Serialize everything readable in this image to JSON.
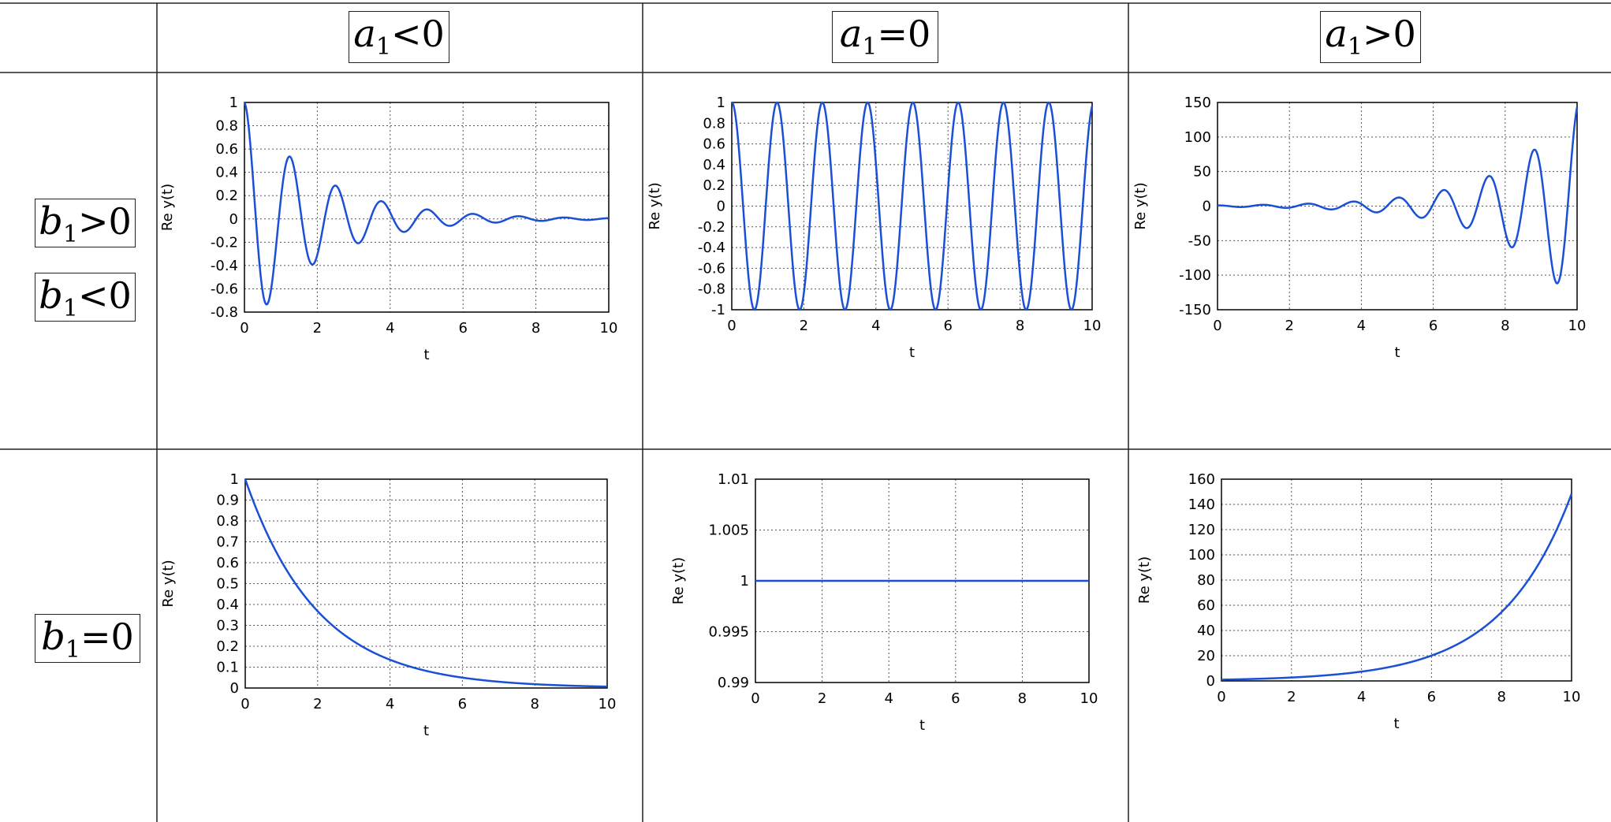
{
  "headers": {
    "col_a_neg": {
      "var": "a",
      "sub": "1",
      "op": "<0"
    },
    "col_a_zero": {
      "var": "a",
      "sub": "1",
      "op": "=0"
    },
    "col_a_pos": {
      "var": "a",
      "sub": "1",
      "op": ">0"
    },
    "row_b_pos": {
      "var": "b",
      "sub": "1",
      "op": ">0"
    },
    "row_b_neg": {
      "var": "b",
      "sub": "1",
      "op": "<0"
    },
    "row_b_zero": {
      "var": "b",
      "sub": "1",
      "op": "=0"
    }
  },
  "colors": {
    "line": "#1a4fd6",
    "grid": "#555555",
    "border": "#222222"
  },
  "chart_data": [
    {
      "type": "line",
      "function": "exp(-0.5 t) cos(5 t)",
      "x_range": [
        0,
        10
      ],
      "ylim": [
        -0.8,
        1
      ],
      "xticks": [
        "0",
        "2",
        "4",
        "6",
        "8",
        "10"
      ],
      "yticks": [
        "-0.8",
        "-0.6",
        "-0.4",
        "-0.2",
        "0",
        "0.2",
        "0.4",
        "0.6",
        "0.8",
        "1"
      ],
      "xlabel": "t",
      "ylabel": "Re y(t)",
      "grid": true
    },
    {
      "type": "line",
      "function": "cos(5 t)",
      "x_range": [
        0,
        10
      ],
      "ylim": [
        -1,
        1
      ],
      "xticks": [
        "0",
        "2",
        "4",
        "6",
        "8",
        "10"
      ],
      "yticks": [
        "-1",
        "-0.8",
        "-0.6",
        "-0.4",
        "-0.2",
        "0",
        "0.2",
        "0.4",
        "0.6",
        "0.8",
        "1"
      ],
      "xlabel": "t",
      "ylabel": "Re y(t)",
      "grid": true
    },
    {
      "type": "line",
      "function": "exp(0.5 t) cos(5 t)",
      "x_range": [
        0,
        10
      ],
      "ylim": [
        -150,
        150
      ],
      "xticks": [
        "0",
        "2",
        "4",
        "6",
        "8",
        "10"
      ],
      "yticks": [
        "-150",
        "-100",
        "-50",
        "0",
        "50",
        "100",
        "150"
      ],
      "xlabel": "t",
      "ylabel": "Re y(t)",
      "grid": true
    },
    {
      "type": "line",
      "function": "exp(-0.5 t)",
      "x_range": [
        0,
        10
      ],
      "ylim": [
        0,
        1
      ],
      "xticks": [
        "0",
        "2",
        "4",
        "6",
        "8",
        "10"
      ],
      "yticks": [
        "0",
        "0.1",
        "0.2",
        "0.3",
        "0.4",
        "0.5",
        "0.6",
        "0.7",
        "0.8",
        "0.9",
        "1"
      ],
      "xlabel": "t",
      "ylabel": "Re y(t)",
      "grid": true
    },
    {
      "type": "line",
      "function": "1",
      "x_range": [
        0,
        10
      ],
      "ylim": [
        0.99,
        1.01
      ],
      "xticks": [
        "0",
        "2",
        "4",
        "6",
        "8",
        "10"
      ],
      "yticks": [
        "0.99",
        "0.995",
        "1",
        "1.005",
        "1.01"
      ],
      "xlabel": "t",
      "ylabel": "Re y(t)",
      "grid": true
    },
    {
      "type": "line",
      "function": "exp(0.5 t)",
      "x_range": [
        0,
        10
      ],
      "ylim": [
        0,
        160
      ],
      "xticks": [
        "0",
        "2",
        "4",
        "6",
        "8",
        "10"
      ],
      "yticks": [
        "0",
        "20",
        "40",
        "60",
        "80",
        "100",
        "120",
        "140",
        "160"
      ],
      "xlabel": "t",
      "ylabel": "Re y(t)",
      "grid": true
    }
  ]
}
